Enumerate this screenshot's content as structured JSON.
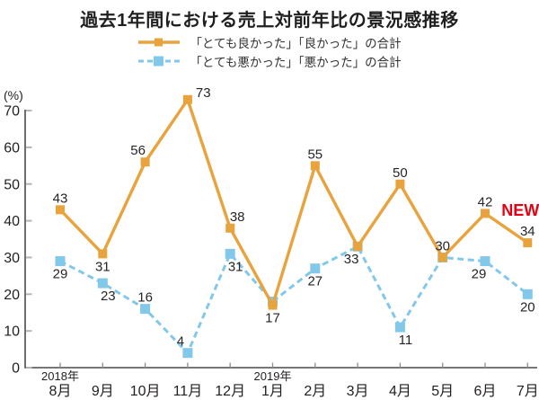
{
  "colors": {
    "good": "#e8a33d",
    "bad": "#82c8ea",
    "axis": "#4a4a4a",
    "tick_y": "#b5b5b5",
    "tick_x": "#8f8f8f",
    "text": "#231f20",
    "value_label": "#262626",
    "new_badge": "#e60012"
  },
  "chart_data": {
    "type": "line",
    "title": "過去1年間における売上対前年比の景況感推移",
    "unit_label": "(%)",
    "grid": false,
    "legend_position": "top",
    "x_axis": {
      "months": [
        "8月",
        "9月",
        "10月",
        "11月",
        "12月",
        "1月",
        "2月",
        "3月",
        "4月",
        "5月",
        "6月",
        "7月"
      ],
      "year_labels": [
        {
          "text": "2018年",
          "index": 0
        },
        {
          "text": "2019年",
          "index": 5
        }
      ]
    },
    "y_axis": {
      "min": 0,
      "max": 70,
      "tick_step": 10,
      "ticks": [
        0,
        10,
        20,
        30,
        40,
        50,
        60,
        70
      ]
    },
    "series": [
      {
        "name": "good",
        "legend_label": "「とても良かった」「良かった」の合計",
        "style": "solid",
        "color": "#e8a33d",
        "values": [
          43,
          31,
          56,
          73,
          38,
          17,
          55,
          33,
          50,
          30,
          42,
          34
        ],
        "labels": [
          "43",
          "31",
          "56",
          "73",
          "38",
          "17",
          "55",
          "33",
          "50",
          "30",
          "42",
          "34"
        ],
        "label_pos": [
          "above",
          "below",
          "above-left",
          "right-up",
          "above-right",
          "below",
          "above",
          "below-left",
          "above",
          "above",
          "above",
          "above"
        ]
      },
      {
        "name": "bad",
        "legend_label": "「とても悪かった」「悪かった」の合計",
        "style": "dashed",
        "color": "#82c8ea",
        "values": [
          29,
          23,
          16,
          4,
          31,
          18,
          27,
          33,
          11,
          30,
          29,
          20
        ],
        "labels": [
          "29",
          "23",
          "16",
          "4",
          "31",
          null,
          "27",
          null,
          "11",
          null,
          "29",
          "20"
        ],
        "label_pos": [
          "below",
          "below-right",
          "above",
          "above-left",
          "below-right",
          null,
          "below",
          null,
          "below-right",
          null,
          "below-left",
          "below"
        ]
      }
    ],
    "annotation": {
      "text": "NEW",
      "month_index": 11,
      "series": "good",
      "dx": -8,
      "dy": -30
    }
  }
}
